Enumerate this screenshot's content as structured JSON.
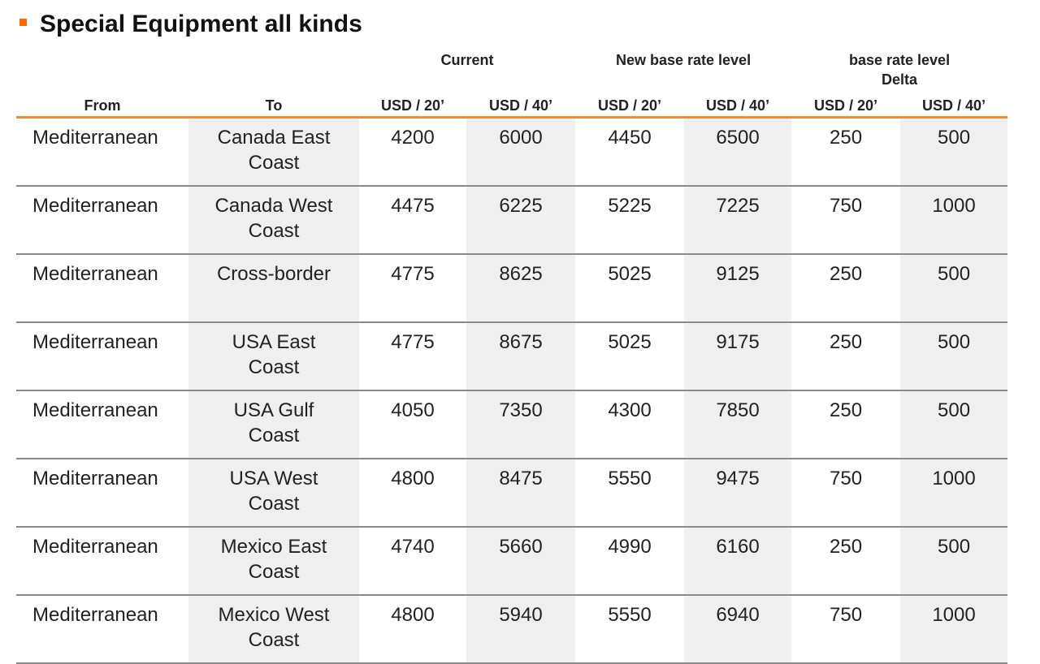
{
  "title": "Special Equipment all kinds",
  "headers": {
    "groups": [
      "Current",
      "New base rate level",
      "base rate level\nDelta"
    ],
    "from": "From",
    "to": "To",
    "units": [
      "USD / 20’",
      "USD / 40’",
      "USD / 20’",
      "USD / 40’",
      "USD / 20’",
      "USD / 40’"
    ]
  },
  "rows": [
    {
      "from": "Mediterranean",
      "to": "Canada East\nCoast",
      "cur20": "4200",
      "cur40": "6000",
      "new20": "4450",
      "new40": "6500",
      "d20": "250",
      "d40": "500"
    },
    {
      "from": "Mediterranean",
      "to": "Canada West\nCoast",
      "cur20": "4475",
      "cur40": "6225",
      "new20": "5225",
      "new40": "7225",
      "d20": "750",
      "d40": "1000"
    },
    {
      "from": "Mediterranean",
      "to": "Cross-border",
      "cur20": "4775",
      "cur40": "8625",
      "new20": "5025",
      "new40": "9125",
      "d20": "250",
      "d40": "500"
    },
    {
      "from": "Mediterranean",
      "to": "USA East\nCoast",
      "cur20": "4775",
      "cur40": "8675",
      "new20": "5025",
      "new40": "9175",
      "d20": "250",
      "d40": "500"
    },
    {
      "from": "Mediterranean",
      "to": "USA Gulf\nCoast",
      "cur20": "4050",
      "cur40": "7350",
      "new20": "4300",
      "new40": "7850",
      "d20": "250",
      "d40": "500"
    },
    {
      "from": "Mediterranean",
      "to": "USA West\nCoast",
      "cur20": "4800",
      "cur40": "8475",
      "new20": "5550",
      "new40": "9475",
      "d20": "750",
      "d40": "1000"
    },
    {
      "from": "Mediterranean",
      "to": "Mexico East\nCoast",
      "cur20": "4740",
      "cur40": "5660",
      "new20": "4990",
      "new40": "6160",
      "d20": "250",
      "d40": "500"
    },
    {
      "from": "Mediterranean",
      "to": "Mexico West\nCoast",
      "cur20": "4800",
      "cur40": "5940",
      "new20": "5550",
      "new40": "6940",
      "d20": "750",
      "d40": "1000"
    }
  ],
  "colors": {
    "accent": "#ff6a00",
    "header_rule": "#f28a30",
    "row_rule": "#8a8a8a",
    "shade": "#efefef"
  }
}
